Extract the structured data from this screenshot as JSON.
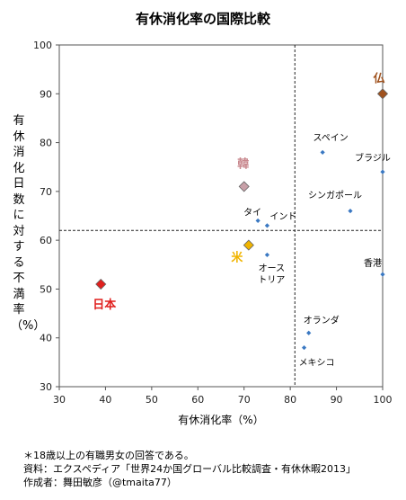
{
  "chart_data": {
    "type": "scatter",
    "title": "有休消化率の国際比較",
    "xlabel": "有休消化率（%）",
    "ylabel": "有休消化日数に対する不満率（%）",
    "xlim": [
      30,
      100
    ],
    "ylim": [
      30,
      100
    ],
    "xticks": [
      30,
      40,
      50,
      60,
      70,
      80,
      90,
      100
    ],
    "yticks": [
      30,
      40,
      50,
      60,
      70,
      80,
      90,
      100
    ],
    "reference_lines": {
      "x": 81,
      "y": 62
    },
    "points": [
      {
        "label": "日本",
        "x": 39,
        "y": 51,
        "highlight": true,
        "color": "#e0201e",
        "label_color": "#e0201e"
      },
      {
        "label": "米",
        "x": 71,
        "y": 59,
        "highlight": true,
        "color": "#f0b400",
        "label_color": "#f0b400"
      },
      {
        "label": "韓",
        "x": 70,
        "y": 71,
        "highlight": true,
        "color": "#c8a0a8",
        "label_color": "#c8878d"
      },
      {
        "label": "仏",
        "x": 100,
        "y": 90,
        "highlight": true,
        "color": "#a0521e",
        "label_color": "#a0521e"
      },
      {
        "label": "タイ",
        "x": 73,
        "y": 64,
        "highlight": false,
        "color": "#3a78c2",
        "label_color": "#000000"
      },
      {
        "label": "インド",
        "x": 75,
        "y": 63,
        "highlight": false,
        "color": "#3a78c2",
        "label_color": "#000000"
      },
      {
        "label": "オース\nトリア",
        "x": 75,
        "y": 57,
        "highlight": false,
        "color": "#3a78c2",
        "label_color": "#000000"
      },
      {
        "label": "スペイン",
        "x": 87,
        "y": 78,
        "highlight": false,
        "color": "#3a78c2",
        "label_color": "#000000"
      },
      {
        "label": "ブラジル",
        "x": 100,
        "y": 74,
        "highlight": false,
        "color": "#3a78c2",
        "label_color": "#000000"
      },
      {
        "label": "シンガポール",
        "x": 93,
        "y": 66,
        "highlight": false,
        "color": "#3a78c2",
        "label_color": "#000000"
      },
      {
        "label": "香港",
        "x": 100,
        "y": 53,
        "highlight": false,
        "color": "#3a78c2",
        "label_color": "#000000"
      },
      {
        "label": "オランダ",
        "x": 84,
        "y": 41,
        "highlight": false,
        "color": "#3a78c2",
        "label_color": "#000000"
      },
      {
        "label": "メキシコ",
        "x": 83,
        "y": 38,
        "highlight": false,
        "color": "#3a78c2",
        "label_color": "#000000"
      }
    ]
  },
  "footnotes": [
    "＊18歳以上の有職男女の回答である。",
    "資料：エクスペディア「世界24か国グローバル比較調査・有休休暇2013」",
    "作成者：舞田敏彦（@tmaita77）"
  ]
}
